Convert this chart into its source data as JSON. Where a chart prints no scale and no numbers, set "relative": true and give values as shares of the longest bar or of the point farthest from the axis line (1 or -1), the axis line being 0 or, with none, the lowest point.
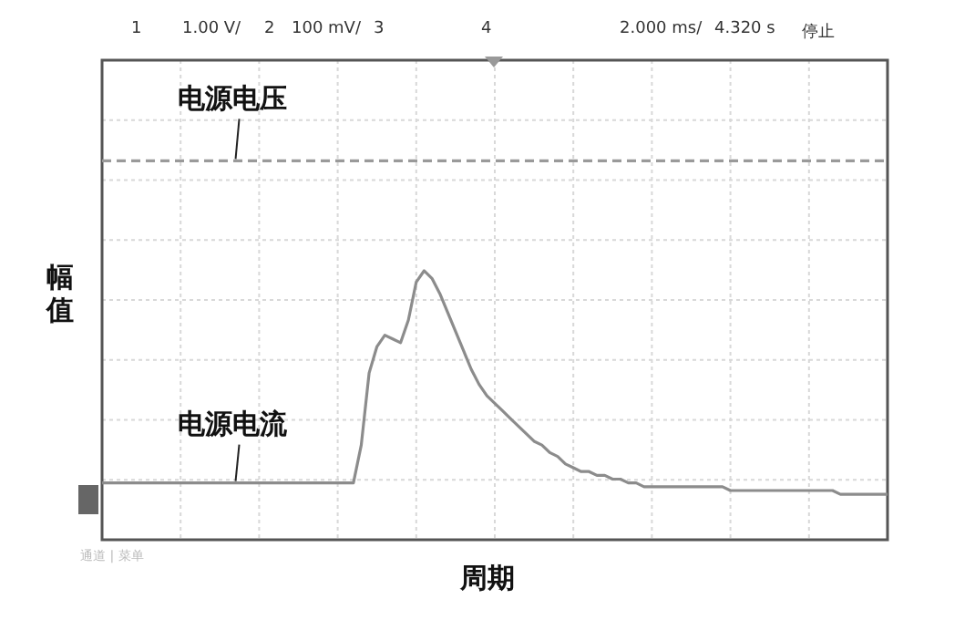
{
  "chart_data": {
    "type": "line",
    "relative": true,
    "xlabel": "周期",
    "ylabel": "幅值",
    "grid": true,
    "legend": false,
    "marker": "none",
    "annotations": [
      "1",
      "1.00 V/",
      "2",
      "100 mV/",
      "3",
      "4",
      "2.000 ms/",
      "4.320 s",
      "停止",
      "通道 | 菜单"
    ],
    "categories": [
      null,
      null,
      null,
      null,
      null,
      null,
      null,
      null,
      null,
      null,
      null,
      null,
      null,
      null,
      null,
      null,
      null,
      null,
      null,
      null,
      null,
      null,
      null,
      null,
      null,
      null,
      null,
      null,
      null,
      null,
      null,
      null,
      null,
      null,
      null,
      null,
      null,
      null,
      null,
      null,
      null,
      null,
      null,
      null,
      null,
      null,
      null,
      null,
      null,
      null,
      null,
      null,
      null,
      null,
      null,
      null,
      null,
      null,
      null,
      null,
      null,
      null,
      null,
      null,
      null,
      null,
      null,
      null,
      null,
      null,
      null,
      null,
      null,
      null,
      null,
      null,
      null,
      null,
      null,
      null,
      null,
      null,
      null,
      null,
      null,
      null,
      null,
      null,
      null,
      null,
      null,
      null,
      null,
      null,
      null,
      null,
      null,
      null,
      null,
      null,
      null
    ],
    "series": [
      {
        "name": "电源电压",
        "color": "#9a9a9a",
        "line_style": "dashed",
        "values": [
          1,
          1,
          1,
          1,
          1,
          1,
          1,
          1,
          1,
          1,
          1,
          1,
          1,
          1,
          1,
          1,
          1,
          1,
          1,
          1,
          1,
          1,
          1,
          1,
          1,
          1,
          1,
          1,
          1,
          1,
          1,
          1,
          1,
          1,
          1,
          1,
          1,
          1,
          1,
          1,
          1,
          1,
          1,
          1,
          1,
          1,
          1,
          1,
          1,
          1,
          1,
          1,
          1,
          1,
          1,
          1,
          1,
          1,
          1,
          1,
          1,
          1,
          1,
          1,
          1,
          1,
          1,
          1,
          1,
          1,
          1,
          1,
          1,
          1,
          1,
          1,
          1,
          1,
          1,
          1,
          1,
          1,
          1,
          1,
          1,
          1,
          1,
          1,
          1,
          1,
          1,
          1,
          1,
          1,
          1,
          1,
          1,
          1,
          1,
          1,
          1
        ]
      },
      {
        "name": "电源电流",
        "color": "#8c8c8c",
        "line_style": "solid",
        "values": [
          0.15,
          0.15,
          0.15,
          0.15,
          0.15,
          0.15,
          0.15,
          0.15,
          0.15,
          0.15,
          0.15,
          0.15,
          0.15,
          0.15,
          0.15,
          0.15,
          0.15,
          0.15,
          0.15,
          0.15,
          0.15,
          0.15,
          0.15,
          0.15,
          0.15,
          0.15,
          0.15,
          0.15,
          0.15,
          0.15,
          0.15,
          0.15,
          0.15,
          0.25,
          0.44,
          0.51,
          0.54,
          0.53,
          0.52,
          0.58,
          0.68,
          0.71,
          0.69,
          0.65,
          0.6,
          0.55,
          0.5,
          0.45,
          0.41,
          0.38,
          0.36,
          0.34,
          0.32,
          0.3,
          0.28,
          0.26,
          0.25,
          0.23,
          0.22,
          0.2,
          0.19,
          0.18,
          0.18,
          0.17,
          0.17,
          0.16,
          0.16,
          0.15,
          0.15,
          0.14,
          0.14,
          0.14,
          0.14,
          0.14,
          0.14,
          0.14,
          0.14,
          0.14,
          0.14,
          0.14,
          0.13,
          0.13,
          0.13,
          0.13,
          0.13,
          0.13,
          0.13,
          0.13,
          0.13,
          0.13,
          0.13,
          0.13,
          0.13,
          0.13,
          0.12,
          0.12,
          0.12,
          0.12,
          0.12,
          0.12,
          0.12
        ]
      }
    ]
  }
}
